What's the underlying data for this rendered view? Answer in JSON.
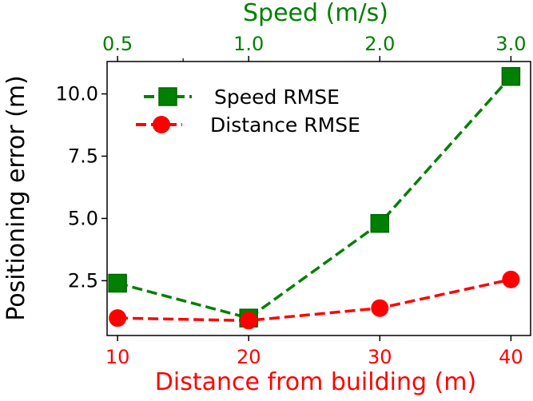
{
  "chart_data": {
    "type": "line",
    "title": "",
    "xlabel": "Distance from building (m)",
    "ylabel": "Positioning error (m)",
    "x_top_label": "Speed (m/s)",
    "x": [
      10,
      20,
      30,
      40
    ],
    "x_ticks": [
      "10",
      "20",
      "30",
      "40"
    ],
    "x_top_ticks": [
      "0.5",
      "1.0",
      "2.0",
      "3.0"
    ],
    "y_ticks": [
      "2.5",
      "5.0",
      "7.5",
      "10.0"
    ],
    "xlim": [
      9.2,
      41.5
    ],
    "ylim": [
      0.3,
      11.3
    ],
    "grid": false,
    "legend_position": "upper-left",
    "series": [
      {
        "name": "Speed RMSE",
        "values": [
          2.4,
          1.0,
          4.8,
          10.7
        ],
        "color": "#008000",
        "marker": "square",
        "linestyle": "dashed"
      },
      {
        "name": "Distance RMSE",
        "values": [
          1.0,
          0.9,
          1.4,
          2.55
        ],
        "color": "#ff0000",
        "marker": "circle",
        "linestyle": "dashed"
      }
    ],
    "colors": {
      "bottom_axis": "#ff0000",
      "top_axis": "#008000",
      "left_axis": "#000000"
    }
  }
}
